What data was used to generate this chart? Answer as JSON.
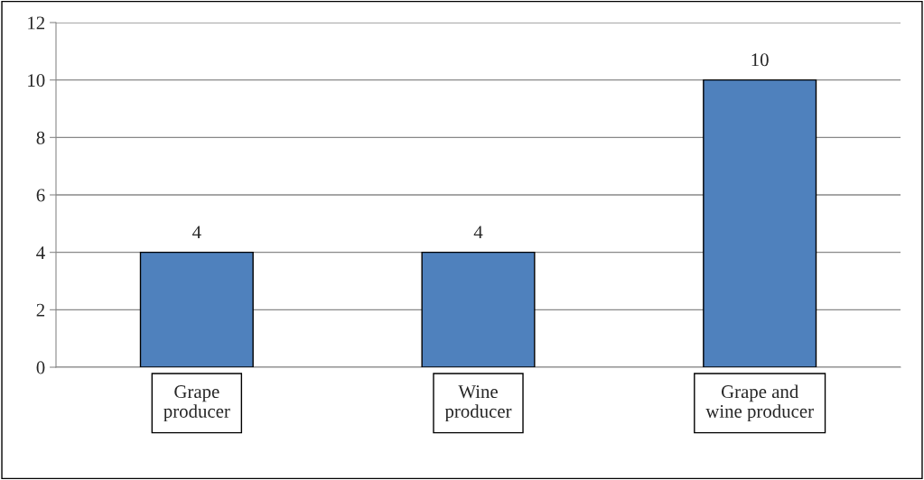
{
  "chart_data": {
    "type": "bar",
    "categories": [
      "Grape\nproducer",
      "Wine\nproducer",
      "Grape and\nwine producer"
    ],
    "values": [
      4,
      4,
      10
    ],
    "color": "#4f81bd",
    "ylim": [
      0,
      12
    ],
    "yticks": [
      0,
      2,
      4,
      6,
      8,
      10,
      12
    ],
    "grid": "y",
    "data_labels": true
  }
}
